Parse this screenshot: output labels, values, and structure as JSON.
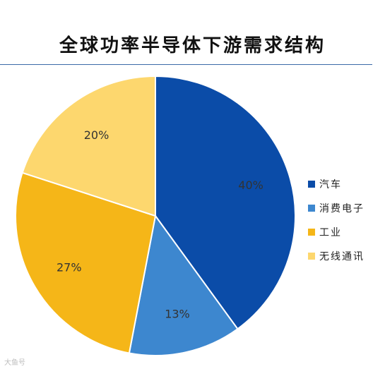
{
  "chart_data": {
    "type": "pie",
    "title": "全球功率半导体下游需求结构",
    "categories": [
      "汽车",
      "消费电子",
      "工业",
      "无线通讯"
    ],
    "values": [
      40,
      13,
      27,
      20
    ],
    "value_labels": [
      "40%",
      "13%",
      "27%",
      "20%"
    ],
    "colors": [
      "#0b4ca8",
      "#3d87cf",
      "#f5b618",
      "#fdd76e"
    ],
    "start": "12 o'clock",
    "direction": "clockwise",
    "legend_position": "right"
  },
  "watermark": "大鱼号"
}
